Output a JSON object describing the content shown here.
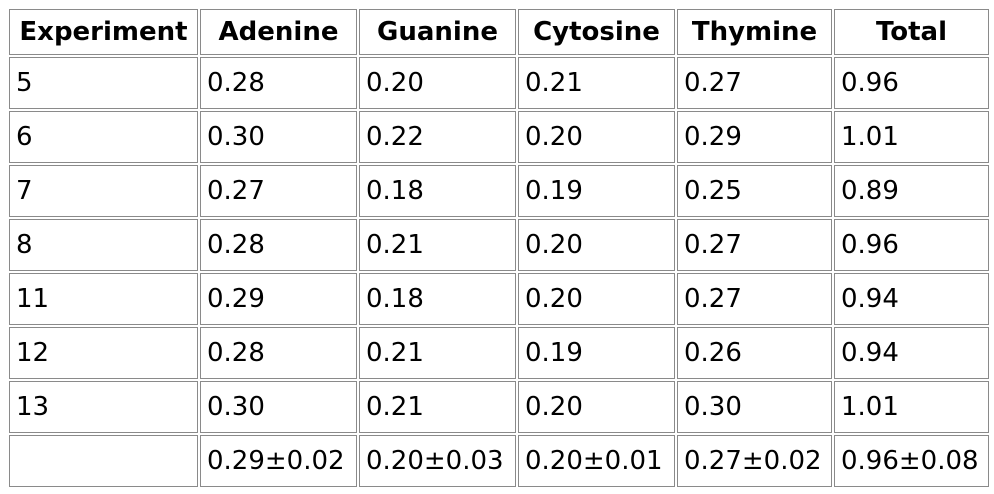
{
  "table": {
    "columns": [
      "Experiment",
      "Adenine",
      "Guanine",
      "Cytosine",
      "Thymine",
      "Total"
    ],
    "rows": [
      [
        "5",
        "0.28",
        "0.20",
        "0.21",
        "0.27",
        "0.96"
      ],
      [
        "6",
        "0.30",
        "0.22",
        "0.20",
        "0.29",
        "1.01"
      ],
      [
        "7",
        "0.27",
        "0.18",
        "0.19",
        "0.25",
        "0.89"
      ],
      [
        "8",
        "0.28",
        "0.21",
        "0.20",
        "0.27",
        "0.96"
      ],
      [
        "11",
        "0.29",
        "0.18",
        "0.20",
        "0.27",
        "0.94"
      ],
      [
        "12",
        "0.28",
        "0.21",
        "0.19",
        "0.26",
        "0.94"
      ],
      [
        "13",
        "0.30",
        "0.21",
        "0.20",
        "0.30",
        "1.01"
      ]
    ],
    "summary": [
      "0.29±0.02",
      "0.20±0.03",
      "0.20±0.01",
      "0.27±0.02",
      "0.96±0.08"
    ]
  }
}
